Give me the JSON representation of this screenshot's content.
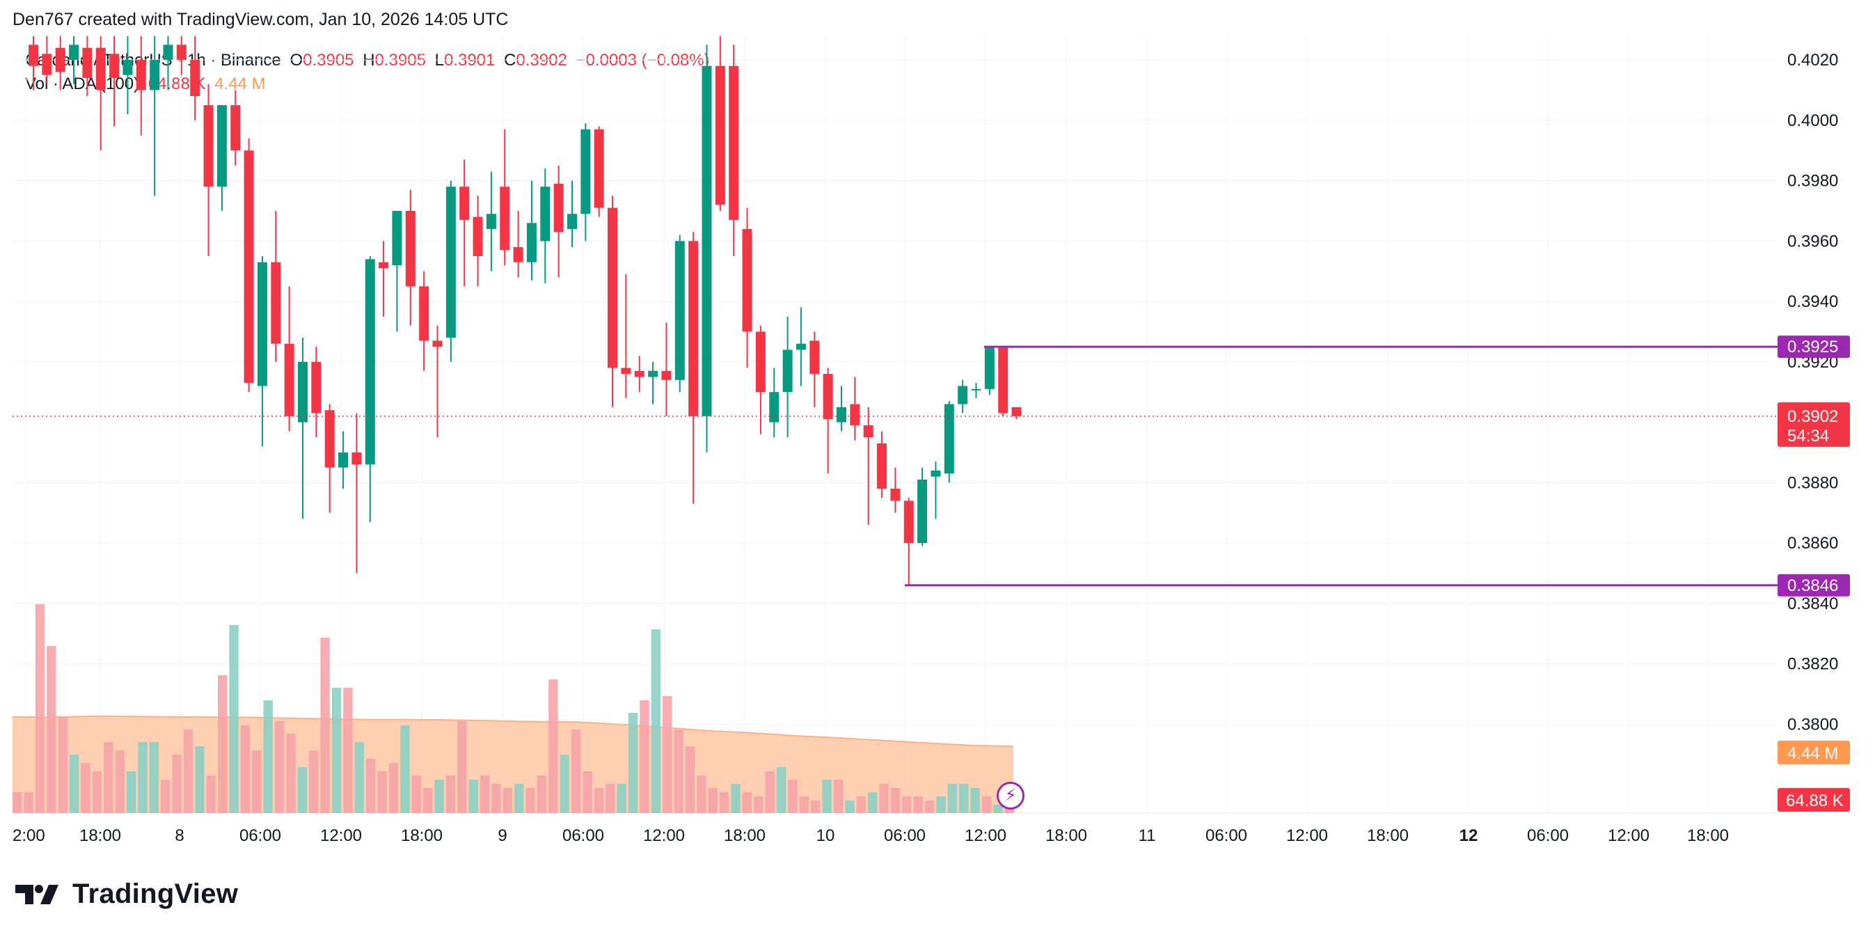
{
  "header": {
    "credit": "Den767 created with TradingView.com, Jan 10, 2026 14:05 UTC"
  },
  "legend": {
    "symbol": "Cardano / TetherUS · 1h · Binance",
    "o_label": "O",
    "o_value": "0.3905",
    "h_label": "H",
    "h_value": "0.3905",
    "l_label": "L",
    "l_value": "0.3901",
    "c_label": "C",
    "c_value": "0.3902",
    "change": "−0.0003 (−0.08%)",
    "vol_label": "Vol · ADA (100)",
    "vol_value": "64.88 K",
    "vol_ma_value": "4.44 M"
  },
  "logo": {
    "text": "TradingView",
    "icon": "tradingview-logo-icon"
  },
  "buttons": {
    "flash_icon": "lightning-icon",
    "flash_glyph": "⚡"
  },
  "colors": {
    "up": "#089981",
    "down": "#F23645",
    "level_line": "#9C27B0",
    "vol_up": "#8CCFC4",
    "vol_down": "#F5A3A8",
    "vol_ma_fill": "#FFC7A3",
    "vol_ma_badge": "#FF9850",
    "grid": "#F0F2F5"
  },
  "chart_data": {
    "type": "candlestick",
    "price_axis": {
      "ticks": [
        "0.4020",
        "0.4000",
        "0.3980",
        "0.3960",
        "0.3940",
        "0.3920",
        "0.3880",
        "0.3860",
        "0.3840",
        "0.3820",
        "0.3800"
      ],
      "range": [
        0.3795,
        0.4026
      ]
    },
    "time_axis": {
      "labels": [
        "2:00",
        "18:00",
        "8",
        "06:00",
        "12:00",
        "18:00",
        "9",
        "06:00",
        "12:00",
        "18:00",
        "10",
        "06:00",
        "12:00",
        "18:00",
        "11",
        "06:00",
        "12:00",
        "18:00",
        "12",
        "06:00",
        "12:00",
        "18:00"
      ],
      "bold": [
        "12"
      ]
    },
    "horizontal_levels": [
      {
        "label": "0.3925",
        "value": 0.3925
      },
      {
        "label": "0.3846",
        "value": 0.3846
      }
    ],
    "last_price": {
      "label": "0.3902",
      "value": 0.3902,
      "countdown": "54:34"
    },
    "volume_badges": {
      "ma": "4.44 M",
      "vol": "64.88 K"
    },
    "candles": [
      {
        "o": 0.4025,
        "h": 0.403,
        "l": 0.401,
        "c": 0.4018
      },
      {
        "o": 0.4022,
        "h": 0.403,
        "l": 0.4012,
        "c": 0.4015
      },
      {
        "o": 0.4024,
        "h": 0.403,
        "l": 0.401,
        "c": 0.4016
      },
      {
        "o": 0.402,
        "h": 0.403,
        "l": 0.4012,
        "c": 0.4025
      },
      {
        "o": 0.4024,
        "h": 0.403,
        "l": 0.4008,
        "c": 0.4014
      },
      {
        "o": 0.4024,
        "h": 0.403,
        "l": 0.399,
        "c": 0.401
      },
      {
        "o": 0.4022,
        "h": 0.403,
        "l": 0.3998,
        "c": 0.4014
      },
      {
        "o": 0.4015,
        "h": 0.403,
        "l": 0.4002,
        "c": 0.402
      },
      {
        "o": 0.402,
        "h": 0.403,
        "l": 0.3995,
        "c": 0.401
      },
      {
        "o": 0.401,
        "h": 0.403,
        "l": 0.3975,
        "c": 0.402
      },
      {
        "o": 0.402,
        "h": 0.403,
        "l": 0.401,
        "c": 0.4025
      },
      {
        "o": 0.4025,
        "h": 0.403,
        "l": 0.4015,
        "c": 0.402
      },
      {
        "o": 0.402,
        "h": 0.403,
        "l": 0.4,
        "c": 0.4008
      },
      {
        "o": 0.4005,
        "h": 0.4012,
        "l": 0.3955,
        "c": 0.3978
      },
      {
        "o": 0.3978,
        "h": 0.4005,
        "l": 0.397,
        "c": 0.4005
      },
      {
        "o": 0.4005,
        "h": 0.401,
        "l": 0.3985,
        "c": 0.399
      },
      {
        "o": 0.399,
        "h": 0.3994,
        "l": 0.391,
        "c": 0.3913
      },
      {
        "o": 0.3912,
        "h": 0.3955,
        "l": 0.3892,
        "c": 0.3953
      },
      {
        "o": 0.3953,
        "h": 0.397,
        "l": 0.392,
        "c": 0.3926
      },
      {
        "o": 0.3926,
        "h": 0.3945,
        "l": 0.3897,
        "c": 0.3902
      },
      {
        "o": 0.39,
        "h": 0.3928,
        "l": 0.3868,
        "c": 0.392
      },
      {
        "o": 0.392,
        "h": 0.3925,
        "l": 0.3895,
        "c": 0.3903
      },
      {
        "o": 0.3904,
        "h": 0.3906,
        "l": 0.387,
        "c": 0.3885
      },
      {
        "o": 0.3885,
        "h": 0.3897,
        "l": 0.3878,
        "c": 0.389
      },
      {
        "o": 0.389,
        "h": 0.3903,
        "l": 0.385,
        "c": 0.3886
      },
      {
        "o": 0.3886,
        "h": 0.3955,
        "l": 0.3867,
        "c": 0.3954
      },
      {
        "o": 0.3953,
        "h": 0.396,
        "l": 0.3935,
        "c": 0.3951
      },
      {
        "o": 0.3952,
        "h": 0.397,
        "l": 0.393,
        "c": 0.397
      },
      {
        "o": 0.397,
        "h": 0.3977,
        "l": 0.3932,
        "c": 0.3945
      },
      {
        "o": 0.3945,
        "h": 0.395,
        "l": 0.3917,
        "c": 0.3927
      },
      {
        "o": 0.3927,
        "h": 0.3932,
        "l": 0.3895,
        "c": 0.3925
      },
      {
        "o": 0.3928,
        "h": 0.398,
        "l": 0.392,
        "c": 0.3978
      },
      {
        "o": 0.3978,
        "h": 0.3987,
        "l": 0.3945,
        "c": 0.3967
      },
      {
        "o": 0.3968,
        "h": 0.3975,
        "l": 0.3945,
        "c": 0.3955
      },
      {
        "o": 0.3964,
        "h": 0.3983,
        "l": 0.395,
        "c": 0.3969
      },
      {
        "o": 0.3978,
        "h": 0.3997,
        "l": 0.3952,
        "c": 0.3957
      },
      {
        "o": 0.3958,
        "h": 0.397,
        "l": 0.3948,
        "c": 0.3953
      },
      {
        "o": 0.3953,
        "h": 0.398,
        "l": 0.3947,
        "c": 0.3966
      },
      {
        "o": 0.396,
        "h": 0.3984,
        "l": 0.3946,
        "c": 0.3978
      },
      {
        "o": 0.3979,
        "h": 0.3985,
        "l": 0.3948,
        "c": 0.3963
      },
      {
        "o": 0.3964,
        "h": 0.398,
        "l": 0.3958,
        "c": 0.3969
      },
      {
        "o": 0.3969,
        "h": 0.3999,
        "l": 0.396,
        "c": 0.3997
      },
      {
        "o": 0.3997,
        "h": 0.3998,
        "l": 0.3968,
        "c": 0.3971
      },
      {
        "o": 0.3971,
        "h": 0.3975,
        "l": 0.3905,
        "c": 0.3918
      },
      {
        "o": 0.3918,
        "h": 0.3949,
        "l": 0.3908,
        "c": 0.3916
      },
      {
        "o": 0.3917,
        "h": 0.3922,
        "l": 0.391,
        "c": 0.3915
      },
      {
        "o": 0.3915,
        "h": 0.392,
        "l": 0.3906,
        "c": 0.3917
      },
      {
        "o": 0.3917,
        "h": 0.3933,
        "l": 0.3902,
        "c": 0.3914
      },
      {
        "o": 0.3914,
        "h": 0.3962,
        "l": 0.391,
        "c": 0.396
      },
      {
        "o": 0.396,
        "h": 0.3963,
        "l": 0.3873,
        "c": 0.3902
      },
      {
        "o": 0.3902,
        "h": 0.4025,
        "l": 0.389,
        "c": 0.4018
      },
      {
        "o": 0.4018,
        "h": 0.4028,
        "l": 0.397,
        "c": 0.3972
      },
      {
        "o": 0.4018,
        "h": 0.4025,
        "l": 0.3955,
        "c": 0.3967
      },
      {
        "o": 0.3964,
        "h": 0.3971,
        "l": 0.3918,
        "c": 0.393
      },
      {
        "o": 0.393,
        "h": 0.3932,
        "l": 0.3896,
        "c": 0.391
      },
      {
        "o": 0.39,
        "h": 0.3918,
        "l": 0.3895,
        "c": 0.391
      },
      {
        "o": 0.391,
        "h": 0.3935,
        "l": 0.3895,
        "c": 0.3924
      },
      {
        "o": 0.3924,
        "h": 0.3938,
        "l": 0.3912,
        "c": 0.3926
      },
      {
        "o": 0.3927,
        "h": 0.393,
        "l": 0.3905,
        "c": 0.3916
      },
      {
        "o": 0.3916,
        "h": 0.3918,
        "l": 0.3883,
        "c": 0.3901
      },
      {
        "o": 0.39,
        "h": 0.3912,
        "l": 0.3897,
        "c": 0.3905
      },
      {
        "o": 0.3906,
        "h": 0.3915,
        "l": 0.3894,
        "c": 0.3899
      },
      {
        "o": 0.3899,
        "h": 0.3905,
        "l": 0.3866,
        "c": 0.3895
      },
      {
        "o": 0.3893,
        "h": 0.3897,
        "l": 0.3875,
        "c": 0.3878
      },
      {
        "o": 0.3878,
        "h": 0.3885,
        "l": 0.387,
        "c": 0.3874
      },
      {
        "o": 0.3874,
        "h": 0.3875,
        "l": 0.3846,
        "c": 0.386
      },
      {
        "o": 0.386,
        "h": 0.3885,
        "l": 0.3859,
        "c": 0.3881
      },
      {
        "o": 0.3882,
        "h": 0.3887,
        "l": 0.3868,
        "c": 0.3884
      },
      {
        "o": 0.3883,
        "h": 0.3907,
        "l": 0.388,
        "c": 0.3906
      },
      {
        "o": 0.3906,
        "h": 0.3914,
        "l": 0.3903,
        "c": 0.3912
      },
      {
        "o": 0.3911,
        "h": 0.3913,
        "l": 0.3908,
        "c": 0.3911
      },
      {
        "o": 0.3911,
        "h": 0.3925,
        "l": 0.3909,
        "c": 0.3925
      },
      {
        "o": 0.3925,
        "h": 0.3925,
        "l": 0.3902,
        "c": 0.3903
      },
      {
        "o": 0.3905,
        "h": 0.3905,
        "l": 0.3901,
        "c": 0.3902
      }
    ],
    "volumes": [
      {
        "v": 0.5,
        "up": false
      },
      {
        "v": 0.5,
        "up": false
      },
      {
        "v": 5.0,
        "up": false
      },
      {
        "v": 4.0,
        "up": false
      },
      {
        "v": 2.3,
        "up": false
      },
      {
        "v": 1.4,
        "up": true
      },
      {
        "v": 1.2,
        "up": false
      },
      {
        "v": 1.0,
        "up": false
      },
      {
        "v": 1.7,
        "up": false
      },
      {
        "v": 1.5,
        "up": false
      },
      {
        "v": 1.0,
        "up": true
      },
      {
        "v": 1.7,
        "up": true
      },
      {
        "v": 1.7,
        "up": true
      },
      {
        "v": 0.8,
        "up": false
      },
      {
        "v": 1.4,
        "up": false
      },
      {
        "v": 2.0,
        "up": false
      },
      {
        "v": 1.6,
        "up": true
      },
      {
        "v": 0.9,
        "up": false
      },
      {
        "v": 3.3,
        "up": false
      },
      {
        "v": 4.5,
        "up": true
      },
      {
        "v": 2.1,
        "up": false
      },
      {
        "v": 1.5,
        "up": false
      },
      {
        "v": 2.7,
        "up": true
      },
      {
        "v": 2.2,
        "up": false
      },
      {
        "v": 1.9,
        "up": false
      },
      {
        "v": 1.1,
        "up": true
      },
      {
        "v": 1.5,
        "up": false
      },
      {
        "v": 4.2,
        "up": false
      },
      {
        "v": 3.0,
        "up": true
      },
      {
        "v": 3.0,
        "up": false
      },
      {
        "v": 1.7,
        "up": true
      },
      {
        "v": 1.3,
        "up": false
      },
      {
        "v": 1.0,
        "up": false
      },
      {
        "v": 1.2,
        "up": false
      },
      {
        "v": 2.1,
        "up": true
      },
      {
        "v": 0.9,
        "up": false
      },
      {
        "v": 0.6,
        "up": false
      },
      {
        "v": 0.8,
        "up": true
      },
      {
        "v": 0.9,
        "up": false
      },
      {
        "v": 2.2,
        "up": false
      },
      {
        "v": 0.8,
        "up": true
      },
      {
        "v": 0.9,
        "up": false
      },
      {
        "v": 0.7,
        "up": false
      },
      {
        "v": 0.6,
        "up": false
      },
      {
        "v": 0.7,
        "up": true
      },
      {
        "v": 0.6,
        "up": false
      },
      {
        "v": 0.9,
        "up": false
      },
      {
        "v": 3.2,
        "up": false
      },
      {
        "v": 1.4,
        "up": true
      },
      {
        "v": 2.0,
        "up": false
      },
      {
        "v": 1.0,
        "up": false
      },
      {
        "v": 0.6,
        "up": false
      },
      {
        "v": 0.7,
        "up": false
      },
      {
        "v": 0.7,
        "up": true
      },
      {
        "v": 2.4,
        "up": true
      },
      {
        "v": 2.7,
        "up": false
      },
      {
        "v": 4.4,
        "up": true
      },
      {
        "v": 2.8,
        "up": false
      },
      {
        "v": 2.0,
        "up": false
      },
      {
        "v": 1.6,
        "up": false
      },
      {
        "v": 0.9,
        "up": false
      },
      {
        "v": 0.6,
        "up": false
      },
      {
        "v": 0.5,
        "up": false
      },
      {
        "v": 0.7,
        "up": true
      },
      {
        "v": 0.5,
        "up": false
      },
      {
        "v": 0.4,
        "up": false
      },
      {
        "v": 1.0,
        "up": false
      },
      {
        "v": 1.1,
        "up": true
      },
      {
        "v": 0.8,
        "up": false
      },
      {
        "v": 0.4,
        "up": false
      },
      {
        "v": 0.3,
        "up": false
      },
      {
        "v": 0.8,
        "up": true
      },
      {
        "v": 0.8,
        "up": false
      },
      {
        "v": 0.3,
        "up": true
      },
      {
        "v": 0.4,
        "up": false
      },
      {
        "v": 0.5,
        "up": true
      },
      {
        "v": 0.7,
        "up": false
      },
      {
        "v": 0.6,
        "up": false
      },
      {
        "v": 0.4,
        "up": false
      },
      {
        "v": 0.4,
        "up": false
      },
      {
        "v": 0.3,
        "up": false
      },
      {
        "v": 0.4,
        "up": true
      },
      {
        "v": 0.7,
        "up": true
      },
      {
        "v": 0.7,
        "up": true
      },
      {
        "v": 0.6,
        "up": true
      },
      {
        "v": 0.4,
        "up": false
      },
      {
        "v": 0.2,
        "up": true
      },
      {
        "v": 0.1,
        "up": false
      }
    ],
    "volume_ma": [
      2.3,
      2.3,
      2.32,
      2.31,
      2.3,
      2.3,
      2.28,
      2.26,
      2.24,
      2.24,
      2.23,
      2.21,
      2.19,
      2.18,
      2.12,
      2.05,
      1.97,
      1.92,
      1.85,
      1.8,
      1.74,
      1.68,
      1.62,
      1.6
    ]
  }
}
